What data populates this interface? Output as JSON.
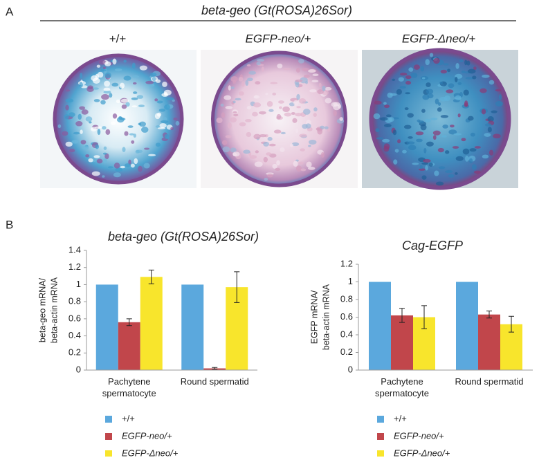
{
  "panel_a": {
    "label": "A",
    "title": "beta-geo (Gt(ROSA)26Sor)",
    "genotypes": [
      "+/+",
      "EGFP-neo/+",
      "EGFP-Δneo/+"
    ]
  },
  "panel_b": {
    "label": "B"
  },
  "chart_data": [
    {
      "type": "bar",
      "title": "beta-geo (Gt(ROSA)26Sor)",
      "ylabel": [
        "beta-geo mRNA/",
        "beta-actin mRNA"
      ],
      "categories": [
        "Pachytene spermatocyte",
        "Round spermatid"
      ],
      "series": [
        {
          "name": "+/+",
          "color": "#5ba8dd",
          "values": [
            1,
            1
          ]
        },
        {
          "name": "EGFP-neo/+",
          "color": "#c1464b",
          "values": [
            0.56,
            0.02
          ],
          "errors": [
            0.04,
            0.01
          ]
        },
        {
          "name": "EGFP-Δneo/+",
          "color": "#f8e52c",
          "values": [
            1.09,
            0.97
          ],
          "errors": [
            0.08,
            0.18
          ]
        }
      ],
      "ylim": [
        0,
        1.4
      ],
      "yticks": [
        0,
        0.2,
        0.4,
        0.6,
        0.8,
        1,
        1.2,
        1.4
      ],
      "grid": false
    },
    {
      "type": "bar",
      "title": "Cag-EGFP",
      "ylabel": [
        "EGFP mRNA/",
        "beta-actin mRNA"
      ],
      "categories": [
        "Pachytene spermatocyte",
        "Round spermatid"
      ],
      "series": [
        {
          "name": "+/+",
          "color": "#5ba8dd",
          "values": [
            1,
            1
          ]
        },
        {
          "name": "EGFP-neo/+",
          "color": "#c1464b",
          "values": [
            0.62,
            0.63
          ],
          "errors": [
            0.08,
            0.04
          ]
        },
        {
          "name": "EGFP-Δneo/+",
          "color": "#f8e52c",
          "values": [
            0.6,
            0.52
          ],
          "errors": [
            0.13,
            0.09
          ]
        }
      ],
      "ylim": [
        0,
        1.2
      ],
      "yticks": [
        0,
        0.2,
        0.4,
        0.6,
        0.8,
        1,
        1.2
      ],
      "grid": false
    }
  ]
}
